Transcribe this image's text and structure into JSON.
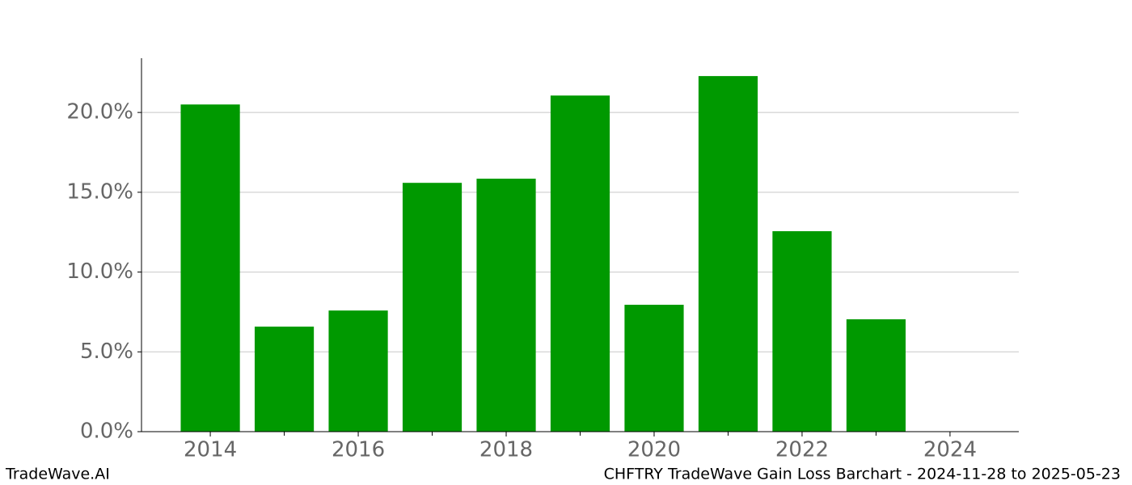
{
  "chart_data": {
    "type": "bar",
    "x": [
      2014,
      2015,
      2016,
      2017,
      2018,
      2019,
      2020,
      2021,
      2022,
      2023
    ],
    "values": [
      20.5,
      6.58,
      7.59,
      15.59,
      15.85,
      21.06,
      7.95,
      22.28,
      12.56,
      7.04
    ],
    "color": "#009900",
    "bar_width": 0.8,
    "xlim": [
      2013.07,
      2024.93
    ],
    "xticks": [
      2014,
      2016,
      2018,
      2020,
      2022,
      2024
    ],
    "x_minor_ticks": [
      2015,
      2017,
      2019,
      2021,
      2023
    ],
    "ylim": [
      0,
      23.4
    ],
    "yticks": [
      {
        "value": 0,
        "label": "0.0%"
      },
      {
        "value": 5,
        "label": "5.0%"
      },
      {
        "value": 10,
        "label": "10.0%"
      },
      {
        "value": 15,
        "label": "15.0%"
      },
      {
        "value": 20,
        "label": "20.0%"
      }
    ],
    "grid": true
  },
  "footer": {
    "left": "TradeWave.AI",
    "right": "CHFTRY TradeWave Gain Loss Barchart - 2024-11-28 to 2025-05-23"
  }
}
